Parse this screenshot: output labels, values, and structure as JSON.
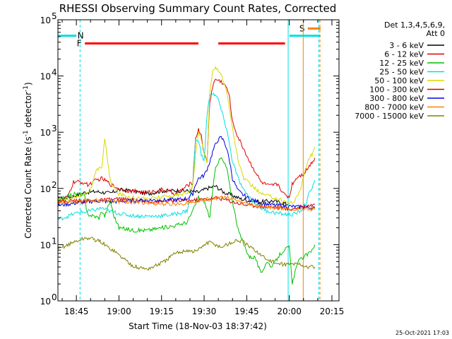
{
  "chart_data": {
    "type": "line",
    "title": "RHESSI Observing Summary Count Rates, Corrected",
    "xlabel": "Start Time (18-Nov-03 18:37:42)",
    "ylabel_parts": [
      "Corrected Count Rate (s",
      "-1",
      " detector",
      "-1",
      ")"
    ],
    "yscale": "log",
    "ylim": [
      1,
      100000
    ],
    "xlim_minutes": [
      38.5,
      137.5
    ],
    "x_unit": "minutes after 18:00 UT",
    "x_ticks": [
      {
        "m": 45,
        "label": "18:45"
      },
      {
        "m": 60,
        "label": "19:00"
      },
      {
        "m": 75,
        "label": "19:15"
      },
      {
        "m": 90,
        "label": "19:30"
      },
      {
        "m": 105,
        "label": "19:45"
      },
      {
        "m": 120,
        "label": "20:00"
      },
      {
        "m": 135,
        "label": "20:15"
      }
    ],
    "y_ticks": [
      {
        "v": 1,
        "label": "10",
        "exp": "0"
      },
      {
        "v": 10,
        "label": "10",
        "exp": "1"
      },
      {
        "v": 100,
        "label": "10",
        "exp": "2"
      },
      {
        "v": 1000,
        "label": "10",
        "exp": "3"
      },
      {
        "v": 10000,
        "label": "10",
        "exp": "4"
      },
      {
        "v": 100000,
        "label": "10",
        "exp": "5"
      }
    ],
    "legend_header": [
      "Det 1,3,4,5,6,9,",
      "Att 0"
    ],
    "series": [
      {
        "name": "3 - 6 keV",
        "color": "#000000",
        "x": [
          38.5,
          44,
          48,
          52,
          57,
          60,
          65,
          70,
          75,
          80,
          85,
          88,
          91,
          94,
          97,
          100,
          103,
          106,
          110,
          114,
          118,
          119.5
        ],
        "y": [
          65,
          72,
          85,
          88,
          82,
          95,
          90,
          80,
          90,
          92,
          90,
          85,
          100,
          110,
          85,
          75,
          65,
          60,
          58,
          60,
          55,
          52
        ]
      },
      {
        "name": "6 - 12 keV",
        "color": "#e00000",
        "x": [
          38.5,
          42,
          44,
          46,
          48,
          49,
          52,
          54,
          56,
          58,
          60,
          64,
          70,
          75,
          80,
          84,
          86,
          87,
          88,
          89,
          90,
          91,
          92,
          93,
          94,
          96,
          98,
          99,
          100,
          102,
          104,
          106,
          108,
          110,
          113,
          116,
          118,
          120,
          121,
          123,
          125,
          127,
          129
        ],
        "y": [
          55,
          72,
          130,
          130,
          125,
          115,
          140,
          150,
          130,
          110,
          100,
          90,
          85,
          95,
          80,
          110,
          130,
          800,
          1100,
          900,
          400,
          300,
          3500,
          6500,
          8800,
          8000,
          6200,
          4000,
          1500,
          800,
          500,
          300,
          200,
          130,
          110,
          120,
          80,
          70,
          120,
          165,
          180,
          250,
          350
        ]
      },
      {
        "name": "12 - 25 keV",
        "color": "#00c000",
        "x": [
          38.5,
          44,
          46,
          48,
          48.5,
          49,
          53,
          54,
          55,
          56,
          57,
          58,
          60,
          65,
          70,
          75,
          80,
          84,
          86,
          88,
          90,
          92,
          94,
          96,
          98,
          99,
          100,
          102,
          104,
          106,
          108,
          110,
          112,
          114,
          116,
          118,
          120,
          121,
          123,
          125,
          127,
          129
        ],
        "y": [
          60,
          80,
          80,
          75,
          40,
          35,
          30,
          40,
          32,
          45,
          60,
          35,
          20,
          18,
          18,
          20,
          22,
          25,
          40,
          70,
          60,
          30,
          250,
          350,
          230,
          110,
          60,
          18,
          10,
          6,
          6,
          3,
          5,
          4,
          6,
          8,
          9,
          2,
          5,
          6,
          7,
          10
        ]
      },
      {
        "name": "25 - 50 keV",
        "color": "#00e0e0",
        "x": [
          38.5,
          42,
          44,
          46,
          48,
          50,
          52,
          54,
          56,
          58,
          60,
          64,
          68,
          72,
          76,
          80,
          84,
          86,
          87,
          88,
          89,
          90,
          91,
          92,
          93,
          94,
          95,
          96,
          98,
          100,
          102,
          104,
          106,
          108,
          110,
          112,
          114,
          116,
          118,
          120,
          122,
          124,
          126,
          127,
          129
        ],
        "y": [
          28,
          32,
          35,
          38,
          38,
          40,
          42,
          45,
          40,
          38,
          36,
          33,
          32,
          32,
          33,
          35,
          40,
          120,
          700,
          750,
          400,
          300,
          2000,
          4500,
          5000,
          4500,
          3800,
          2500,
          1100,
          300,
          150,
          90,
          70,
          55,
          45,
          40,
          38,
          36,
          35,
          34,
          35,
          40,
          55,
          80,
          140
        ]
      },
      {
        "name": "50 - 100 keV",
        "color": "#d8d800",
        "x": [
          38.5,
          44,
          48,
          50,
          52,
          54,
          55,
          56,
          57,
          58,
          60,
          64,
          70,
          75,
          80,
          84,
          86,
          87,
          88,
          89,
          90,
          91,
          92,
          93,
          94,
          95,
          96,
          98,
          100,
          102,
          104,
          106,
          108,
          110,
          114,
          118,
          120,
          122,
          124,
          126,
          127,
          128,
          129
        ],
        "y": [
          60,
          70,
          80,
          95,
          200,
          250,
          800,
          300,
          130,
          110,
          80,
          70,
          65,
          70,
          75,
          85,
          110,
          400,
          1000,
          800,
          400,
          300,
          5000,
          12000,
          14000,
          13000,
          11000,
          5000,
          1200,
          300,
          150,
          120,
          100,
          80,
          70,
          60,
          55,
          60,
          100,
          250,
          350,
          400,
          550
        ]
      },
      {
        "name": "100 - 300 keV",
        "color": "#d00000",
        "x": [
          38.5,
          44,
          50,
          55,
          60,
          70,
          80,
          88,
          92,
          95,
          98,
          100,
          104,
          110,
          118,
          120,
          125,
          129
        ],
        "y": [
          58,
          60,
          60,
          62,
          65,
          58,
          60,
          62,
          66,
          68,
          62,
          58,
          52,
          48,
          45,
          42,
          48,
          52
        ]
      },
      {
        "name": "300 - 800 keV",
        "color": "#0000e0",
        "x": [
          38.5,
          45,
          52,
          58,
          64,
          70,
          76,
          82,
          84,
          86,
          87,
          88,
          89,
          90,
          91,
          92,
          93,
          94,
          95,
          96,
          97,
          98,
          99,
          100,
          102,
          104,
          106,
          110,
          115,
          120,
          125,
          129
        ],
        "y": [
          50,
          55,
          60,
          58,
          60,
          62,
          62,
          64,
          66,
          80,
          120,
          150,
          160,
          170,
          220,
          300,
          450,
          600,
          750,
          800,
          700,
          500,
          300,
          150,
          90,
          75,
          65,
          55,
          50,
          48,
          46,
          45
        ]
      },
      {
        "name": "800 - 7000 keV",
        "color": "#ff8000",
        "x": [
          38.5,
          44,
          50,
          56,
          62,
          70,
          78,
          84,
          88,
          92,
          96,
          98,
          100,
          104,
          108,
          112,
          116,
          120,
          124,
          129
        ],
        "y": [
          55,
          60,
          62,
          60,
          58,
          55,
          52,
          55,
          60,
          65,
          70,
          68,
          65,
          55,
          50,
          47,
          45,
          44,
          43,
          42
        ]
      },
      {
        "name": "7000 - 15000 keV",
        "color": "#808000",
        "x": [
          38.5,
          40,
          42,
          44,
          46,
          48,
          50,
          52,
          54,
          56,
          58,
          60,
          62,
          64,
          66,
          68,
          70,
          72,
          74,
          76,
          78,
          80,
          82,
          84,
          86,
          88,
          90,
          92,
          94,
          96,
          98,
          100,
          102,
          104,
          106,
          108,
          110,
          112,
          114,
          116,
          118,
          120,
          122,
          124,
          126,
          127,
          128,
          129
        ],
        "y": [
          8,
          9,
          10,
          11,
          12,
          13,
          13,
          12,
          11,
          9,
          8,
          6.5,
          5.5,
          4.5,
          4,
          3.8,
          3.7,
          4,
          4.5,
          5,
          6,
          7,
          7.5,
          8,
          7.5,
          8,
          10,
          11,
          10,
          9,
          10,
          11,
          12,
          11,
          9,
          8,
          6.5,
          5.5,
          5,
          4.5,
          4.5,
          4.5,
          4.5,
          4.5,
          4,
          4,
          4,
          4
        ]
      }
    ],
    "flags": [
      {
        "label": "N",
        "color": "#00e0e0",
        "x0": 38.5,
        "x1": 45,
        "y": 52000,
        "label_x": 46.5
      },
      {
        "label": "F",
        "color": "#ff0000",
        "x0": 48,
        "x1": 88,
        "y": 38000,
        "label_x": 46
      },
      {
        "label": "F",
        "color": "#ff0000",
        "x0": 95,
        "x1": 118.5,
        "y": 38000,
        "label_x": null
      },
      {
        "label": "N",
        "color": "#00e0e0",
        "x0": 120,
        "x1": 131,
        "y": 52000,
        "label_x": null
      },
      {
        "label": "S",
        "color": "#ff8000",
        "x0": 126.5,
        "x1": 131,
        "y": 70000,
        "label_x": 124.5
      }
    ],
    "vlines": [
      {
        "x": 46.3,
        "color": "#00e0e0",
        "style": "dashed"
      },
      {
        "x": 119.6,
        "color": "#00e0e0",
        "style": "solid"
      },
      {
        "x": 124.9,
        "color": "#ff8000",
        "style": "solid"
      },
      {
        "x": 130.4,
        "color": "#00e0e0",
        "style": "dashed"
      },
      {
        "x": 130.8,
        "color": "#ff8000",
        "style": "dashed"
      }
    ]
  },
  "timestamp": "25-Oct-2021 17:03"
}
